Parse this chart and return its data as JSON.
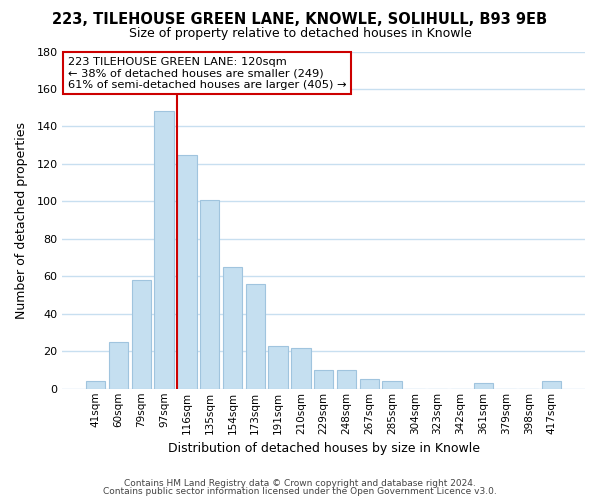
{
  "title": "223, TILEHOUSE GREEN LANE, KNOWLE, SOLIHULL, B93 9EB",
  "subtitle": "Size of property relative to detached houses in Knowle",
  "xlabel": "Distribution of detached houses by size in Knowle",
  "ylabel": "Number of detached properties",
  "bar_labels": [
    "41sqm",
    "60sqm",
    "79sqm",
    "97sqm",
    "116sqm",
    "135sqm",
    "154sqm",
    "173sqm",
    "191sqm",
    "210sqm",
    "229sqm",
    "248sqm",
    "267sqm",
    "285sqm",
    "304sqm",
    "323sqm",
    "342sqm",
    "361sqm",
    "379sqm",
    "398sqm",
    "417sqm"
  ],
  "bar_values": [
    4,
    25,
    58,
    148,
    125,
    101,
    65,
    56,
    23,
    22,
    10,
    10,
    5,
    4,
    0,
    0,
    0,
    3,
    0,
    0,
    4
  ],
  "bar_color": "#c5dff0",
  "bar_edge_color": "#a0c4de",
  "red_line_color": "#cc0000",
  "red_line_bar_index": 4,
  "ylim": [
    0,
    180
  ],
  "yticks": [
    0,
    20,
    40,
    60,
    80,
    100,
    120,
    140,
    160,
    180
  ],
  "annotation_title": "223 TILEHOUSE GREEN LANE: 120sqm",
  "annotation_line1": "← 38% of detached houses are smaller (249)",
  "annotation_line2": "61% of semi-detached houses are larger (405) →",
  "annotation_box_color": "#ffffff",
  "annotation_box_edge": "#cc0000",
  "footer_line1": "Contains HM Land Registry data © Crown copyright and database right 2024.",
  "footer_line2": "Contains public sector information licensed under the Open Government Licence v3.0.",
  "plot_bg_color": "#ffffff",
  "fig_bg_color": "#ffffff",
  "grid_color": "#c8dff0",
  "figsize": [
    6.0,
    5.0
  ],
  "dpi": 100
}
